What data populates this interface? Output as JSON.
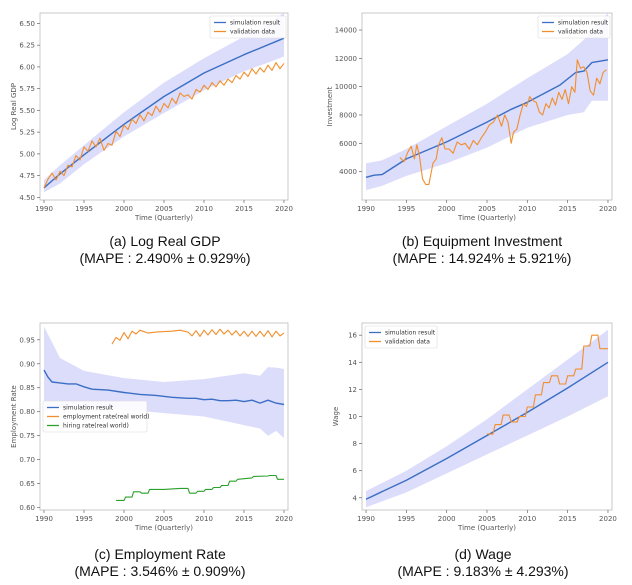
{
  "chart_data": [
    {
      "id": "a",
      "type": "line",
      "caption": "(a) Log Real GDP",
      "mape": "(MAPE : 2.490% ± 0.929%)",
      "xlabel": "Time (Quarterly)",
      "ylabel": "Log Real GDP",
      "xlim": [
        1989.5,
        2020.5
      ],
      "ylim": [
        4.47,
        6.62
      ],
      "xticks": [
        1990,
        1995,
        2000,
        2005,
        2010,
        2015,
        2020
      ],
      "yticks": [
        4.5,
        4.75,
        5.0,
        5.25,
        5.5,
        5.75,
        6.0,
        6.25,
        6.5
      ],
      "ytick_labels": [
        "4.50",
        "4.75",
        "5.00",
        "5.25",
        "5.50",
        "5.75",
        "6.00",
        "6.25",
        "6.50"
      ],
      "legend": {
        "position": "top-right",
        "entries": [
          "simulation result",
          "validation data"
        ]
      },
      "band": {
        "x": [
          1990,
          1992,
          1995,
          2000,
          2005,
          2010,
          2015,
          2018,
          2020
        ],
        "upper": [
          4.7,
          4.87,
          5.1,
          5.48,
          5.82,
          6.1,
          6.35,
          6.5,
          6.62
        ],
        "lower": [
          4.56,
          4.66,
          4.88,
          5.2,
          5.47,
          5.73,
          5.95,
          6.05,
          6.12
        ]
      },
      "series": [
        {
          "name": "simulation result",
          "color": "#3a6fc4",
          "x": [
            1990,
            1992,
            1995,
            2000,
            2005,
            2010,
            2015,
            2020
          ],
          "y": [
            4.61,
            4.77,
            4.99,
            5.34,
            5.66,
            5.93,
            6.14,
            6.33
          ]
        },
        {
          "name": "validation data",
          "color": "#f28e2b",
          "x": [
            1990,
            1990.5,
            1991,
            1991.5,
            1992,
            1992.5,
            1993,
            1993.5,
            1994,
            1994.5,
            1995,
            1995.5,
            1996,
            1996.5,
            1997,
            1997.5,
            1998,
            1998.5,
            1999,
            1999.5,
            2000,
            2000.5,
            2001,
            2001.5,
            2002,
            2002.5,
            2003,
            2003.5,
            2004,
            2004.5,
            2005,
            2005.5,
            2006,
            2006.5,
            2007,
            2007.5,
            2008,
            2008.5,
            2009,
            2009.5,
            2010,
            2010.5,
            2011,
            2011.5,
            2012,
            2012.5,
            2013,
            2013.5,
            2014,
            2014.5,
            2015,
            2015.5,
            2016,
            2016.5,
            2017,
            2017.5,
            2018,
            2018.5,
            2019,
            2019.5,
            2020
          ],
          "y": [
            4.61,
            4.71,
            4.78,
            4.7,
            4.8,
            4.75,
            4.87,
            4.85,
            4.98,
            4.93,
            5.08,
            5.03,
            5.15,
            5.08,
            5.18,
            5.04,
            5.12,
            5.1,
            5.26,
            5.2,
            5.33,
            5.28,
            5.4,
            5.35,
            5.45,
            5.38,
            5.48,
            5.44,
            5.55,
            5.48,
            5.58,
            5.53,
            5.64,
            5.58,
            5.7,
            5.66,
            5.68,
            5.63,
            5.74,
            5.71,
            5.79,
            5.74,
            5.82,
            5.77,
            5.84,
            5.79,
            5.86,
            5.82,
            5.9,
            5.86,
            5.94,
            5.89,
            5.98,
            5.92,
            5.99,
            5.94,
            6.02,
            5.96,
            6.05,
            5.98,
            6.04
          ]
        }
      ]
    },
    {
      "id": "b",
      "type": "line",
      "caption": "(b) Equipment Investment",
      "mape": "(MAPE : 14.924% ± 5.921%)",
      "xlabel": "Time (Quarterly)",
      "ylabel": "Investment",
      "xlim": [
        1989.5,
        2020.5
      ],
      "ylim": [
        2000,
        15200
      ],
      "xticks": [
        1990,
        1995,
        2000,
        2005,
        2010,
        2015,
        2020
      ],
      "yticks": [
        4000,
        6000,
        8000,
        10000,
        12000,
        14000
      ],
      "ytick_labels": [
        "4000",
        "6000",
        "8000",
        "10000",
        "12000",
        "14000"
      ],
      "legend": {
        "position": "top-right",
        "entries": [
          "simulation result",
          "validation data"
        ]
      },
      "band": {
        "x": [
          1990,
          1992,
          1995,
          2000,
          2005,
          2010,
          2015,
          2017,
          2018,
          2020
        ],
        "upper": [
          4600,
          4800,
          5600,
          7200,
          8800,
          10600,
          12300,
          13300,
          14000,
          15200
        ],
        "lower": [
          2700,
          3000,
          3700,
          4600,
          5700,
          7100,
          8000,
          8200,
          9000,
          9000
        ]
      },
      "series": [
        {
          "name": "simulation result",
          "color": "#3a6fc4",
          "x": [
            1990,
            1991,
            1992,
            1995,
            2000,
            2005,
            2008,
            2010,
            2012,
            2014,
            2016,
            2017,
            2018,
            2019,
            2020
          ],
          "y": [
            3600,
            3750,
            3800,
            4900,
            6100,
            7500,
            8400,
            8900,
            9500,
            10100,
            11000,
            11100,
            11700,
            11800,
            11900
          ]
        },
        {
          "name": "validation data",
          "color": "#f28e2b",
          "x": [
            1994.2,
            1994.7,
            1995.2,
            1995.6,
            1996,
            1996.3,
            1996.6,
            1997,
            1997.4,
            1997.8,
            1998.3,
            1998.7,
            1999,
            1999.4,
            1999.8,
            2000.3,
            2000.8,
            2001.3,
            2001.8,
            2002.3,
            2002.8,
            2003.3,
            2003.8,
            2004.3,
            2004.8,
            2005.3,
            2005.8,
            2006.3,
            2006.8,
            2007.2,
            2007.6,
            2008,
            2008.3,
            2008.7,
            2009.1,
            2009.5,
            2009.9,
            2010.3,
            2010.7,
            2011.1,
            2011.5,
            2011.9,
            2012.3,
            2012.7,
            2013.1,
            2013.5,
            2013.9,
            2014.3,
            2014.7,
            2015.1,
            2015.5,
            2015.9,
            2016.2,
            2016.6,
            2017,
            2017.4,
            2017.8,
            2018.2,
            2018.6,
            2019,
            2019.4,
            2019.8
          ],
          "y": [
            5000,
            4700,
            5400,
            5800,
            4900,
            5900,
            5200,
            3500,
            3100,
            3100,
            4600,
            4900,
            5900,
            6400,
            5600,
            5600,
            5300,
            6100,
            5900,
            6000,
            5600,
            6200,
            5900,
            6400,
            6800,
            7300,
            7500,
            8000,
            7200,
            8000,
            7500,
            6000,
            6800,
            7000,
            8000,
            8800,
            8600,
            9300,
            9000,
            8900,
            8200,
            8000,
            8800,
            8500,
            9200,
            8700,
            9600,
            9100,
            9800,
            8800,
            10000,
            9600,
            11900,
            11300,
            11400,
            11000,
            9700,
            9400,
            10600,
            10200,
            11000,
            11200
          ]
        }
      ]
    },
    {
      "id": "c",
      "type": "line",
      "caption": "(c) Employment Rate",
      "mape": "(MAPE : 3.546% ± 0.909%)",
      "xlabel": "Time (Quarterly)",
      "ylabel": "Employment Rate",
      "xlim": [
        1989.5,
        2020.5
      ],
      "ylim": [
        0.595,
        0.985
      ],
      "xticks": [
        1990,
        1995,
        2000,
        2005,
        2010,
        2015,
        2020
      ],
      "yticks": [
        0.6,
        0.65,
        0.7,
        0.75,
        0.8,
        0.85,
        0.9,
        0.95
      ],
      "ytick_labels": [
        "0.60",
        "0.65",
        "0.70",
        "0.75",
        "0.80",
        "0.85",
        "0.90",
        "0.95"
      ],
      "legend": {
        "position": "center-left",
        "entries": [
          "simulation result",
          "employment rate(real world)",
          "hiring rate(real world)"
        ]
      },
      "band": {
        "x": [
          1990,
          1991,
          1992,
          1995,
          2000,
          2005,
          2010,
          2015,
          2017,
          2018,
          2019,
          2020
        ],
        "upper": [
          0.977,
          0.945,
          0.912,
          0.885,
          0.87,
          0.862,
          0.868,
          0.88,
          0.875,
          0.893,
          0.892,
          0.889
        ],
        "lower": [
          0.8,
          0.808,
          0.808,
          0.808,
          0.805,
          0.797,
          0.79,
          0.772,
          0.765,
          0.75,
          0.76,
          0.745
        ]
      },
      "series": [
        {
          "name": "simulation result",
          "color": "#3a6fc4",
          "x": [
            1990,
            1990.5,
            1991,
            1992,
            1993,
            1994,
            1995,
            1996,
            1998,
            2000,
            2002,
            2004,
            2006,
            2008,
            2009,
            2010,
            2011,
            2012,
            2013,
            2014,
            2015,
            2016,
            2017,
            2018,
            2019,
            2020
          ],
          "y": [
            0.887,
            0.872,
            0.862,
            0.86,
            0.858,
            0.858,
            0.852,
            0.847,
            0.845,
            0.84,
            0.836,
            0.834,
            0.83,
            0.828,
            0.828,
            0.825,
            0.826,
            0.823,
            0.823,
            0.824,
            0.821,
            0.824,
            0.818,
            0.824,
            0.818,
            0.815
          ]
        },
        {
          "name": "employment rate(real world)",
          "color": "#f28e2b",
          "x": [
            1998.5,
            1999,
            1999.5,
            2000,
            2000.5,
            2001,
            2001.5,
            2002,
            2003,
            2004,
            2005,
            2006,
            2007,
            2008,
            2008.5,
            2009,
            2009.5,
            2010,
            2010.5,
            2011,
            2011.5,
            2012,
            2012.5,
            2013,
            2013.5,
            2014,
            2014.5,
            2015,
            2015.5,
            2016,
            2016.5,
            2017,
            2017.5,
            2018,
            2018.5,
            2019,
            2019.5,
            2020
          ],
          "y": [
            0.941,
            0.955,
            0.949,
            0.965,
            0.952,
            0.968,
            0.962,
            0.97,
            0.964,
            0.966,
            0.967,
            0.968,
            0.97,
            0.966,
            0.958,
            0.969,
            0.957,
            0.97,
            0.96,
            0.971,
            0.961,
            0.972,
            0.962,
            0.97,
            0.96,
            0.969,
            0.958,
            0.968,
            0.957,
            0.968,
            0.957,
            0.968,
            0.957,
            0.969,
            0.956,
            0.968,
            0.958,
            0.964
          ]
        },
        {
          "name": "hiring rate(real world)",
          "color": "#2ca02c",
          "x": [
            1999,
            2000,
            2000.2,
            2001,
            2001.2,
            2002,
            2002.2,
            2003,
            2003.2,
            2005,
            2007,
            2008,
            2008.2,
            2009,
            2009.2,
            2010,
            2010.2,
            2011,
            2011.2,
            2012,
            2012.2,
            2013,
            2013.2,
            2014,
            2014.2,
            2016,
            2016.2,
            2018,
            2018.2,
            2019,
            2019.2,
            2020
          ],
          "y": [
            0.615,
            0.615,
            0.622,
            0.622,
            0.633,
            0.633,
            0.63,
            0.63,
            0.638,
            0.638,
            0.64,
            0.64,
            0.63,
            0.63,
            0.634,
            0.634,
            0.638,
            0.638,
            0.642,
            0.642,
            0.646,
            0.646,
            0.655,
            0.655,
            0.659,
            0.662,
            0.665,
            0.666,
            0.667,
            0.667,
            0.659,
            0.659
          ]
        }
      ]
    },
    {
      "id": "d",
      "type": "line",
      "caption": "(d) Wage",
      "mape": "(MAPE : 9.183% ± 4.293%)",
      "xlabel": "Time (Quarterly)",
      "ylabel": "Wage",
      "xlim": [
        1989.5,
        2020.5
      ],
      "ylim": [
        3.1,
        16.9
      ],
      "xticks": [
        1990,
        1995,
        2000,
        2005,
        2010,
        2015,
        2020
      ],
      "yticks": [
        4,
        6,
        8,
        10,
        12,
        14,
        16
      ],
      "ytick_labels": [
        "4",
        "6",
        "8",
        "10",
        "12",
        "14",
        "16"
      ],
      "legend": {
        "position": "top-left",
        "entries": [
          "simulation result",
          "validation data"
        ]
      },
      "band": {
        "x": [
          1990,
          1995,
          2000,
          2005,
          2010,
          2015,
          2020
        ],
        "upper": [
          4.5,
          6.0,
          7.8,
          9.8,
          12.0,
          14.2,
          16.4
        ],
        "lower": [
          3.3,
          4.4,
          5.8,
          7.2,
          8.6,
          10.0,
          11.5
        ]
      },
      "series": [
        {
          "name": "simulation result",
          "color": "#3a6fc4",
          "x": [
            1990,
            1995,
            2000,
            2005,
            2010,
            2015,
            2020
          ],
          "y": [
            3.9,
            5.3,
            6.9,
            8.6,
            10.3,
            12.1,
            14.0
          ]
        },
        {
          "name": "validation data",
          "color": "#f28e2b",
          "x": [
            2005,
            2005.75,
            2006,
            2006.75,
            2007,
            2007.75,
            2008,
            2008.75,
            2009,
            2009.75,
            2010,
            2010.75,
            2011,
            2011.75,
            2012,
            2012.75,
            2013,
            2013.75,
            2014,
            2014.75,
            2015,
            2015.75,
            2016,
            2016.75,
            2017,
            2017.75,
            2018,
            2018.75,
            2019,
            2020
          ],
          "y": [
            8.7,
            8.7,
            9.4,
            9.4,
            10.1,
            10.1,
            9.6,
            9.6,
            10.0,
            10.0,
            10.7,
            10.7,
            11.6,
            11.6,
            12.5,
            12.5,
            13.0,
            13.0,
            12.4,
            12.4,
            13.0,
            13.0,
            13.5,
            13.5,
            15.2,
            15.2,
            16.0,
            16.0,
            15.0,
            15.0
          ]
        }
      ]
    }
  ]
}
